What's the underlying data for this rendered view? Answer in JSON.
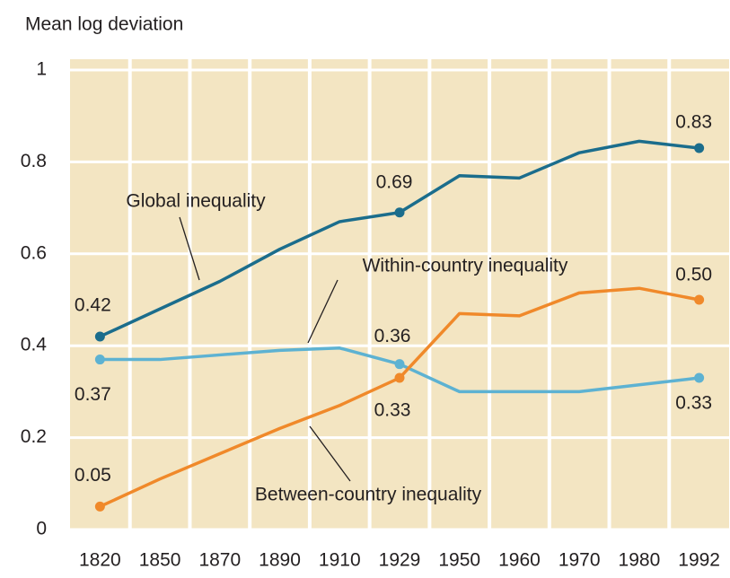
{
  "chart_data": {
    "type": "line",
    "y_label": "Mean log deviation",
    "categories": [
      "1820",
      "1850",
      "1870",
      "1890",
      "1910",
      "1929",
      "1950",
      "1960",
      "1970",
      "1980",
      "1992"
    ],
    "series": [
      {
        "name": "Global inequality",
        "color": "#1b6d8c",
        "values": [
          0.42,
          0.48,
          0.54,
          0.61,
          0.67,
          0.69,
          0.77,
          0.765,
          0.82,
          0.845,
          0.83
        ],
        "value_labels": [
          "0.42",
          null,
          null,
          null,
          null,
          "0.69",
          null,
          null,
          null,
          null,
          "0.83"
        ]
      },
      {
        "name": "Within-country inequality",
        "color": "#5db2d2",
        "values": [
          0.37,
          0.37,
          0.38,
          0.39,
          0.395,
          0.36,
          0.3,
          0.3,
          0.3,
          0.315,
          0.33
        ],
        "value_labels": [
          "0.37",
          null,
          null,
          null,
          null,
          "0.36",
          null,
          null,
          null,
          null,
          "0.33"
        ]
      },
      {
        "name": "Between-country inequality",
        "color": "#f0892a",
        "values": [
          0.05,
          0.11,
          0.165,
          0.22,
          0.27,
          0.33,
          0.47,
          0.465,
          0.515,
          0.525,
          0.5
        ],
        "value_labels": [
          "0.05",
          null,
          null,
          null,
          null,
          "0.33",
          null,
          null,
          null,
          null,
          "0.50"
        ]
      }
    ],
    "ylim": [
      0,
      1
    ],
    "yticks": [
      0,
      0.2,
      0.4,
      0.6,
      0.8,
      1
    ],
    "grid": true,
    "background": "#f3e5c2"
  }
}
